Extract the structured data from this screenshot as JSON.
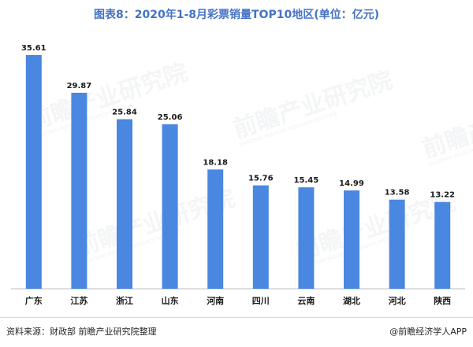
{
  "chart_data": {
    "type": "bar",
    "title": "图表8：2020年1-8月彩票销量TOP10地区(单位：亿元)",
    "categories": [
      "广东",
      "江苏",
      "浙江",
      "山东",
      "河南",
      "四川",
      "云南",
      "湖北",
      "河北",
      "陕西"
    ],
    "values": [
      35.61,
      29.87,
      25.84,
      25.06,
      18.18,
      15.76,
      15.45,
      14.99,
      13.58,
      13.22
    ],
    "value_labels": [
      "35.61",
      "29.87",
      "25.84",
      "25.06",
      "18.18",
      "15.76",
      "15.45",
      "14.99",
      "13.58",
      "13.22"
    ],
    "ylim": [
      0,
      35.61
    ],
    "grid": false,
    "bar_color": "#4a87e0"
  },
  "footer": {
    "source": "资料来源：财政部   前瞻产业研究院整理",
    "brand": "@前瞻经济学人APP"
  },
  "watermark": {
    "text": "前瞻产业研究院",
    "sub": "QIANZHAN INDUSTRY RESEARCH INSTITUTE"
  }
}
